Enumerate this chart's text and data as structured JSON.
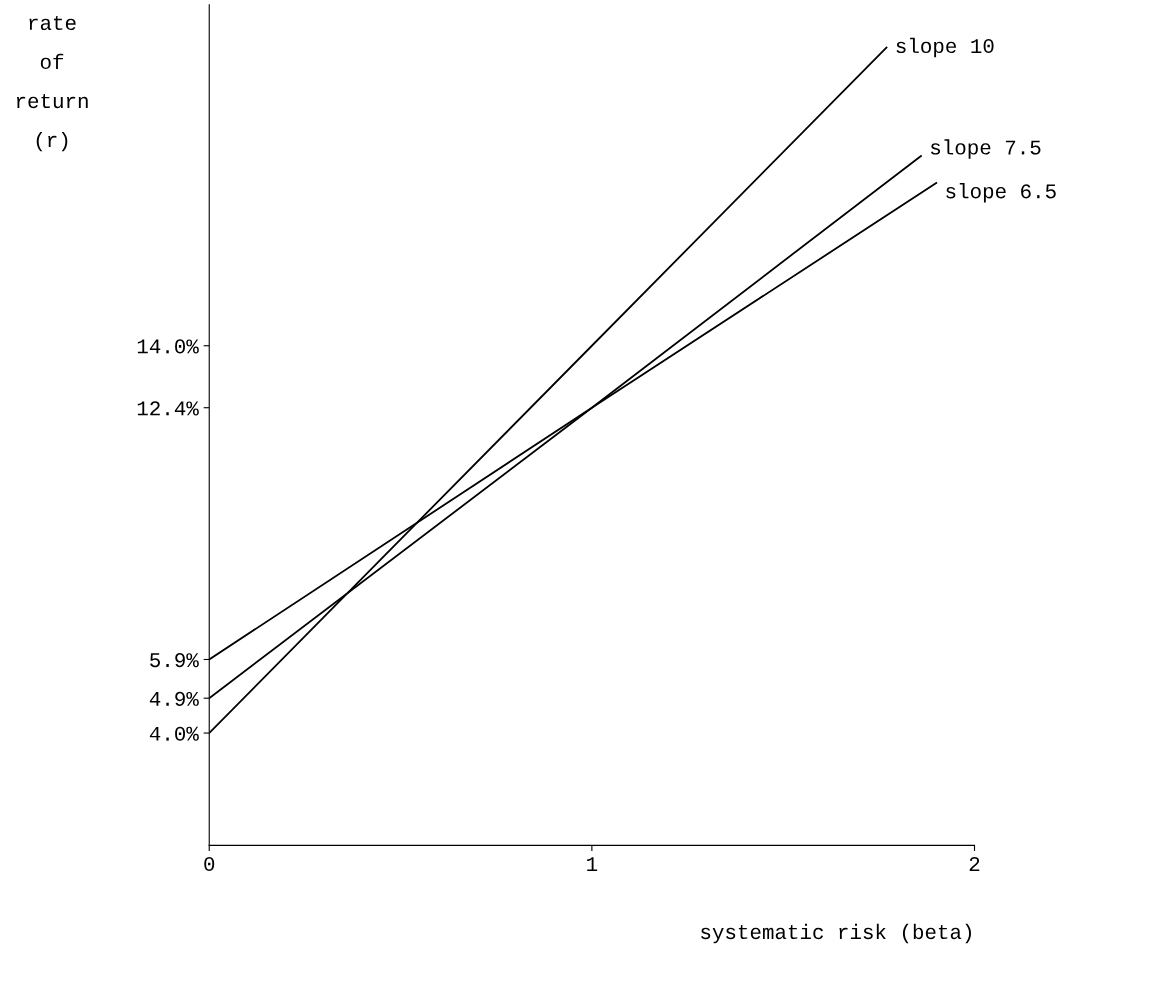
{
  "chart_data": {
    "type": "line",
    "xlabel": "systematic risk (beta)",
    "ylabel": "rate\nof\nreturn\n(r)",
    "series": [
      {
        "name": "slope 10",
        "color": "#000000",
        "x": [
          0,
          1,
          1.77
        ],
        "values": [
          4.0,
          14.0,
          21.7
        ]
      },
      {
        "name": "slope 7.5",
        "color": "#000000",
        "x": [
          0,
          1,
          1.86
        ],
        "values": [
          4.9,
          12.4,
          18.9
        ]
      },
      {
        "name": "slope 6.5",
        "color": "#000000",
        "x": [
          0,
          1,
          1.9
        ],
        "values": [
          5.9,
          12.4,
          18.2
        ]
      }
    ],
    "xlim": [
      0,
      2
    ],
    "xticks": [
      0,
      1,
      2
    ],
    "ylim": [
      1.1,
      22.8
    ],
    "yticks": [
      {
        "value": 4.0,
        "label": "4.0%"
      },
      {
        "value": 4.9,
        "label": "4.9%"
      },
      {
        "value": 5.9,
        "label": "5.9%"
      },
      {
        "value": 12.4,
        "label": "12.4%"
      },
      {
        "value": 14.0,
        "label": "14.0%"
      }
    ],
    "grid": false,
    "legend": false,
    "marker": "none",
    "line_style": "solid"
  }
}
